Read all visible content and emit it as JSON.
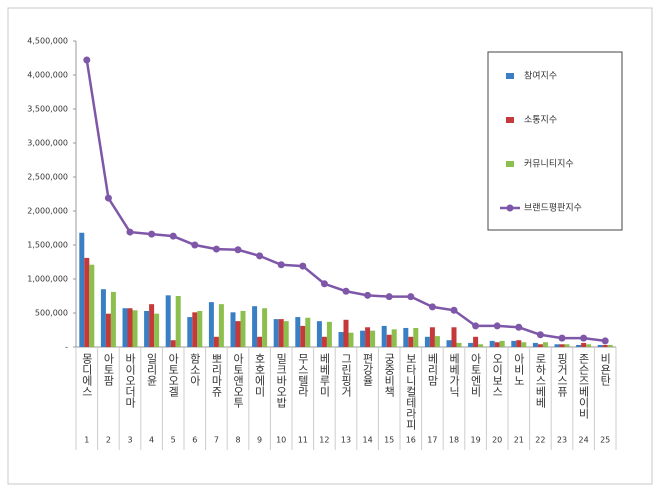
{
  "chart_data": {
    "type": "bar",
    "categories": [
      "몽디에스",
      "아토팜",
      "바이오더마",
      "일리윤",
      "아토오겔",
      "함소아",
      "뽀리마쥬",
      "아토앤오투",
      "호호에미",
      "밀크바오밥",
      "무스텔라",
      "베베루미",
      "그린핑거",
      "편강율",
      "궁중비책",
      "보타니컬테라피",
      "베리맘",
      "베베가닉",
      "아토엔비",
      "오이보스",
      "아비노",
      "로하스베베",
      "핑거스퓨",
      "존슨즈베이비",
      "비욘탄"
    ],
    "ranks": [
      1,
      2,
      3,
      4,
      5,
      6,
      7,
      8,
      9,
      10,
      11,
      12,
      13,
      14,
      15,
      16,
      17,
      18,
      19,
      20,
      21,
      22,
      23,
      24,
      25
    ],
    "series": [
      {
        "name": "참여지수",
        "color": "#3a7fc4",
        "values": [
          1680000,
          850000,
          570000,
          530000,
          760000,
          440000,
          660000,
          510000,
          600000,
          410000,
          440000,
          380000,
          220000,
          240000,
          310000,
          280000,
          150000,
          100000,
          60000,
          90000,
          90000,
          60000,
          40000,
          30000,
          30000
        ]
      },
      {
        "name": "소통지수",
        "color": "#c43a3a",
        "values": [
          1310000,
          490000,
          570000,
          630000,
          100000,
          510000,
          150000,
          380000,
          150000,
          410000,
          310000,
          150000,
          400000,
          290000,
          180000,
          150000,
          290000,
          290000,
          150000,
          70000,
          100000,
          40000,
          40000,
          60000,
          30000
        ]
      },
      {
        "name": "커뮤니티지수",
        "color": "#8cbf4e",
        "values": [
          1210000,
          810000,
          540000,
          490000,
          750000,
          530000,
          630000,
          530000,
          570000,
          380000,
          430000,
          370000,
          210000,
          240000,
          260000,
          280000,
          160000,
          60000,
          40000,
          90000,
          70000,
          70000,
          40000,
          40000,
          30000
        ]
      },
      {
        "name": "브랜드평판지수",
        "color": "#7e57a8",
        "type": "line",
        "values": [
          4220000,
          2190000,
          1690000,
          1660000,
          1630000,
          1500000,
          1440000,
          1430000,
          1340000,
          1210000,
          1190000,
          930000,
          820000,
          760000,
          740000,
          740000,
          590000,
          540000,
          310000,
          310000,
          290000,
          180000,
          130000,
          130000,
          90000
        ]
      }
    ],
    "ylim": [
      0,
      4500000
    ],
    "yticks": [
      {
        "value": 0,
        "label": "-"
      },
      {
        "value": 500000,
        "label": "500,000"
      },
      {
        "value": 1000000,
        "label": "1,000,000"
      },
      {
        "value": 1500000,
        "label": "1,500,000"
      },
      {
        "value": 2000000,
        "label": "2,000,000"
      },
      {
        "value": 2500000,
        "label": "2,500,000"
      },
      {
        "value": 3000000,
        "label": "3,000,000"
      },
      {
        "value": 3500000,
        "label": "3,500,000"
      },
      {
        "value": 4000000,
        "label": "4,000,000"
      },
      {
        "value": 4500000,
        "label": "4,500,000"
      }
    ],
    "legend": "upper-right"
  }
}
